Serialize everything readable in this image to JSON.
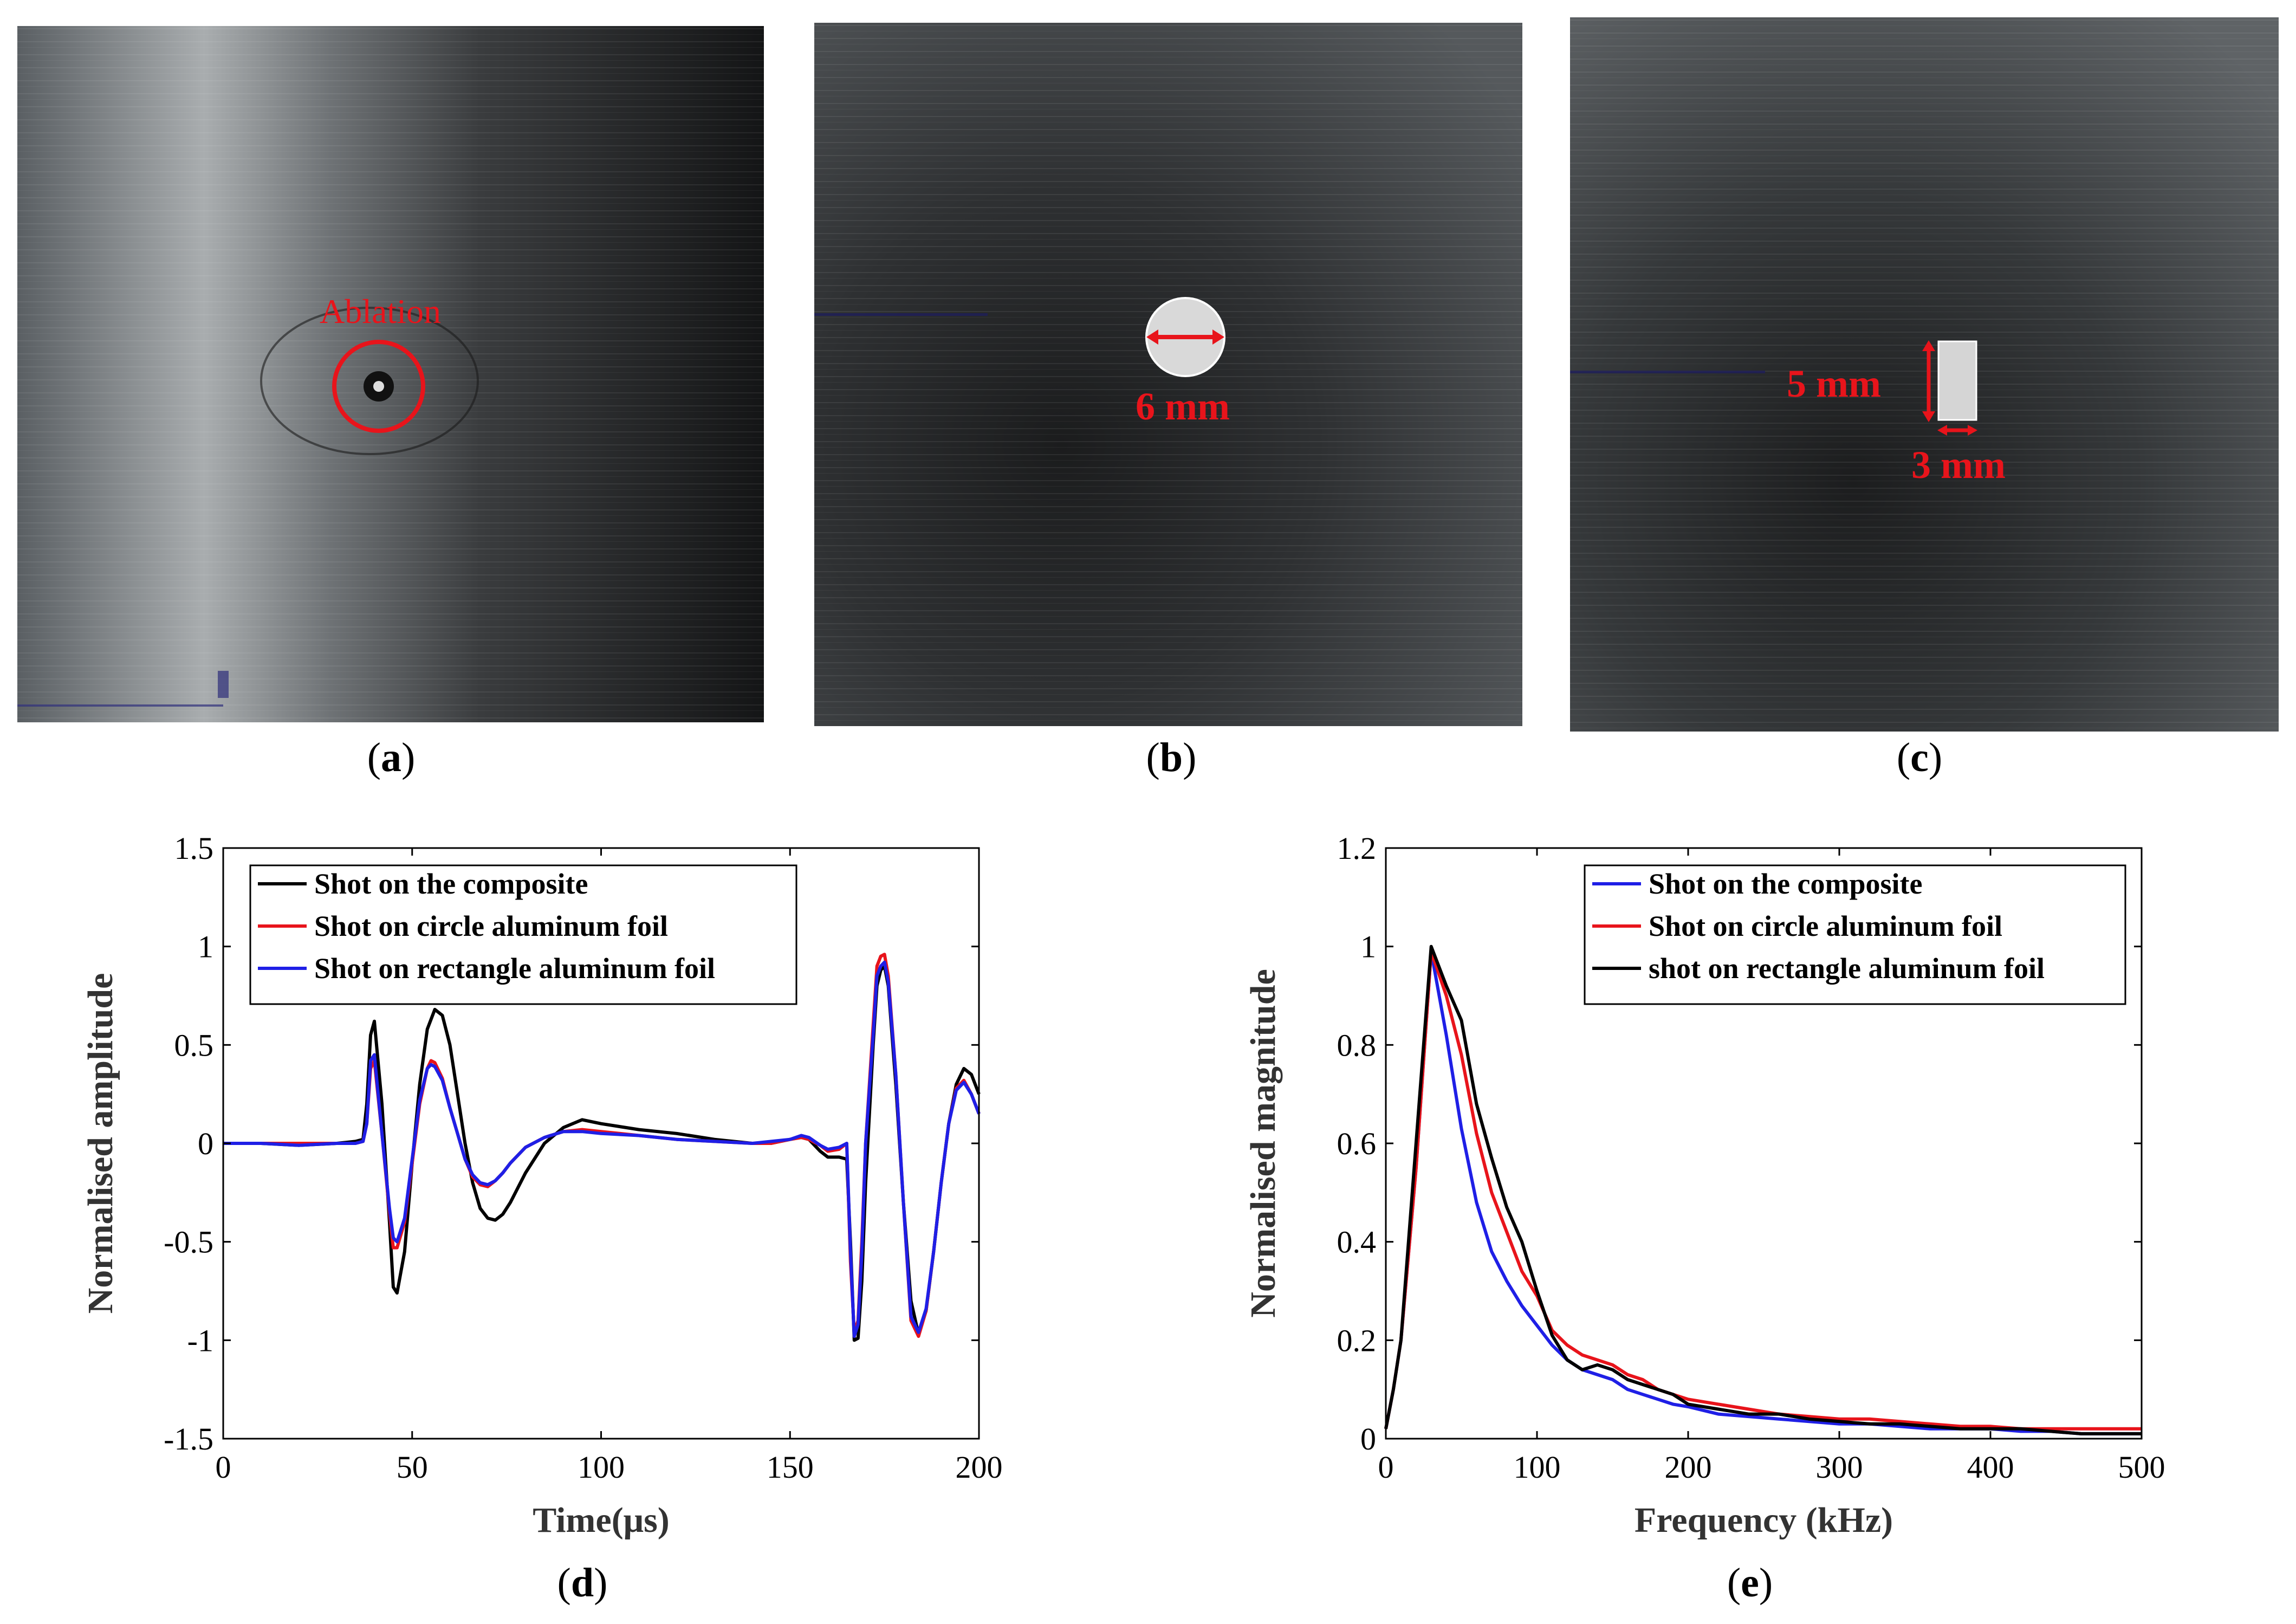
{
  "figure": {
    "photos": [
      {
        "caption_letter": "a",
        "annotation": "Ablation"
      },
      {
        "caption_letter": "b",
        "annotation": "6 mm"
      },
      {
        "caption_letter": "c",
        "annotation_height": "5 mm",
        "annotation_width": "3 mm"
      }
    ],
    "chart_captions": [
      "d",
      "e"
    ]
  },
  "colors": {
    "black": "#000000",
    "red": "#e8141b",
    "blue": "#1f1fe6",
    "annotation_red": "#e8141b"
  },
  "chart_data": [
    {
      "type": "line",
      "xlabel": "Time(μs)",
      "ylabel": "Normalised amplitude",
      "xlim": [
        0,
        200
      ],
      "ylim": [
        -1.5,
        1.5
      ],
      "xticks": [
        0,
        50,
        100,
        150,
        200
      ],
      "yticks": [
        -1.5,
        -1,
        -0.5,
        0,
        0.5,
        1,
        1.5
      ],
      "ytick_labels": [
        "-1.5",
        "-1",
        "-0.5",
        "0",
        "0.5",
        "1",
        "1.5"
      ],
      "legend_position": "top-left",
      "series": [
        {
          "name": "Shot on the composite",
          "color": "#000000",
          "x": [
            0,
            10,
            20,
            30,
            35,
            37,
            38,
            39,
            40,
            42,
            44,
            45,
            46,
            48,
            50,
            52,
            54,
            56,
            58,
            60,
            62,
            64,
            66,
            68,
            70,
            72,
            74,
            76,
            80,
            85,
            90,
            95,
            100,
            110,
            120,
            130,
            140,
            145,
            150,
            153,
            155,
            158,
            160,
            163,
            165,
            166,
            167,
            168,
            169,
            170,
            172,
            173,
            174,
            175,
            176,
            178,
            180,
            182,
            184,
            186,
            188,
            190,
            192,
            194,
            196,
            198,
            200
          ],
          "y": [
            0,
            0,
            -0.01,
            0,
            0.01,
            0.02,
            0.2,
            0.55,
            0.62,
            0.2,
            -0.4,
            -0.73,
            -0.76,
            -0.55,
            -0.1,
            0.3,
            0.58,
            0.68,
            0.65,
            0.5,
            0.25,
            0.0,
            -0.2,
            -0.33,
            -0.38,
            -0.39,
            -0.36,
            -0.3,
            -0.15,
            0.0,
            0.08,
            0.12,
            0.1,
            0.07,
            0.05,
            0.02,
            0.0,
            0.0,
            0.02,
            0.03,
            0.02,
            -0.04,
            -0.07,
            -0.07,
            -0.08,
            -0.5,
            -1.0,
            -0.99,
            -0.7,
            -0.2,
            0.5,
            0.8,
            0.88,
            0.9,
            0.8,
            0.3,
            -0.3,
            -0.8,
            -0.97,
            -0.85,
            -0.55,
            -0.2,
            0.1,
            0.3,
            0.38,
            0.35,
            0.25
          ]
        },
        {
          "name": "Shot on circle aluminum foil",
          "color": "#e8141b",
          "x": [
            0,
            10,
            20,
            30,
            35,
            37,
            38,
            39,
            40,
            42,
            44,
            45,
            46,
            48,
            50,
            52,
            54,
            55,
            56,
            58,
            60,
            62,
            64,
            66,
            68,
            70,
            72,
            74,
            76,
            80,
            85,
            90,
            95,
            100,
            110,
            120,
            130,
            140,
            145,
            150,
            153,
            155,
            158,
            160,
            163,
            165,
            166,
            167,
            168,
            169,
            170,
            172,
            173,
            174,
            175,
            176,
            178,
            180,
            182,
            184,
            186,
            188,
            190,
            192,
            194,
            196,
            198,
            200
          ],
          "y": [
            0,
            0,
            0,
            0,
            0,
            0.01,
            0.1,
            0.38,
            0.42,
            0.05,
            -0.35,
            -0.53,
            -0.53,
            -0.4,
            -0.1,
            0.2,
            0.38,
            0.42,
            0.41,
            0.33,
            0.18,
            0.05,
            -0.08,
            -0.17,
            -0.21,
            -0.22,
            -0.19,
            -0.15,
            -0.1,
            -0.02,
            0.03,
            0.06,
            0.07,
            0.06,
            0.04,
            0.02,
            0.01,
            0.0,
            0.0,
            0.02,
            0.03,
            0.02,
            -0.01,
            -0.04,
            -0.03,
            0.0,
            -0.6,
            -0.96,
            -0.9,
            -0.5,
            0.0,
            0.6,
            0.9,
            0.95,
            0.96,
            0.85,
            0.35,
            -0.3,
            -0.9,
            -0.98,
            -0.85,
            -0.55,
            -0.2,
            0.1,
            0.28,
            0.32,
            0.25,
            0.15
          ]
        },
        {
          "name": "Shot on rectangle aluminum foil",
          "color": "#1f1fe6",
          "x": [
            0,
            10,
            20,
            30,
            35,
            37,
            38,
            39,
            40,
            42,
            44,
            45,
            46,
            48,
            50,
            52,
            54,
            55,
            56,
            58,
            60,
            62,
            64,
            66,
            68,
            70,
            72,
            74,
            76,
            80,
            85,
            90,
            95,
            100,
            110,
            120,
            130,
            140,
            145,
            150,
            153,
            155,
            158,
            160,
            163,
            165,
            166,
            167,
            168,
            169,
            170,
            172,
            173,
            174,
            175,
            176,
            178,
            180,
            182,
            184,
            186,
            188,
            190,
            192,
            194,
            196,
            198,
            200
          ],
          "y": [
            0,
            0,
            -0.01,
            0,
            0,
            0.01,
            0.1,
            0.42,
            0.45,
            0.05,
            -0.33,
            -0.48,
            -0.5,
            -0.38,
            -0.08,
            0.22,
            0.38,
            0.4,
            0.39,
            0.32,
            0.18,
            0.05,
            -0.08,
            -0.16,
            -0.2,
            -0.21,
            -0.19,
            -0.15,
            -0.1,
            -0.02,
            0.03,
            0.06,
            0.06,
            0.05,
            0.04,
            0.02,
            0.01,
            0.0,
            0.01,
            0.02,
            0.04,
            0.03,
            -0.01,
            -0.03,
            -0.02,
            0.0,
            -0.55,
            -0.98,
            -0.92,
            -0.55,
            0.0,
            0.55,
            0.85,
            0.9,
            0.92,
            0.82,
            0.35,
            -0.3,
            -0.88,
            -0.96,
            -0.84,
            -0.55,
            -0.2,
            0.1,
            0.27,
            0.31,
            0.25,
            0.15
          ]
        }
      ]
    },
    {
      "type": "line",
      "xlabel": "Frequency (kHz)",
      "ylabel": "Normalised magnitude",
      "xlim": [
        0,
        500
      ],
      "ylim": [
        0,
        1.2
      ],
      "xticks": [
        0,
        100,
        200,
        300,
        400,
        500
      ],
      "yticks": [
        0,
        0.2,
        0.4,
        0.6,
        0.8,
        1,
        1.2
      ],
      "ytick_labels": [
        "0",
        "0.2",
        "0.4",
        "0.6",
        "0.8",
        "1",
        "1.2"
      ],
      "legend_position": "top-right",
      "series": [
        {
          "name": "Shot on the composite",
          "color": "#1f1fe6",
          "x": [
            0,
            5,
            10,
            20,
            30,
            40,
            50,
            60,
            70,
            80,
            90,
            100,
            110,
            120,
            130,
            140,
            150,
            160,
            170,
            180,
            190,
            200,
            220,
            240,
            260,
            280,
            300,
            320,
            340,
            360,
            380,
            400,
            420,
            440,
            460,
            480,
            500
          ],
          "y": [
            0.02,
            0.1,
            0.2,
            0.55,
            0.99,
            0.82,
            0.63,
            0.48,
            0.38,
            0.32,
            0.27,
            0.23,
            0.19,
            0.16,
            0.14,
            0.13,
            0.12,
            0.1,
            0.09,
            0.08,
            0.07,
            0.065,
            0.05,
            0.045,
            0.04,
            0.035,
            0.03,
            0.03,
            0.025,
            0.02,
            0.02,
            0.02,
            0.015,
            0.015,
            0.01,
            0.01,
            0.01
          ]
        },
        {
          "name": "Shot on circle aluminum foil",
          "color": "#e8141b",
          "x": [
            0,
            5,
            10,
            20,
            30,
            40,
            50,
            60,
            70,
            80,
            90,
            100,
            110,
            120,
            130,
            140,
            150,
            160,
            170,
            180,
            190,
            200,
            220,
            240,
            260,
            280,
            300,
            320,
            340,
            360,
            380,
            400,
            420,
            440,
            460,
            480,
            500
          ],
          "y": [
            0.02,
            0.1,
            0.2,
            0.55,
            0.99,
            0.9,
            0.78,
            0.62,
            0.5,
            0.42,
            0.34,
            0.29,
            0.22,
            0.19,
            0.17,
            0.16,
            0.15,
            0.13,
            0.12,
            0.1,
            0.09,
            0.08,
            0.07,
            0.06,
            0.05,
            0.045,
            0.04,
            0.04,
            0.035,
            0.03,
            0.025,
            0.025,
            0.02,
            0.02,
            0.02,
            0.02,
            0.02
          ]
        },
        {
          "name": "shot on rectangle aluminum foil",
          "color": "#000000",
          "x": [
            0,
            5,
            10,
            20,
            30,
            40,
            50,
            60,
            70,
            80,
            90,
            100,
            110,
            120,
            130,
            140,
            150,
            160,
            170,
            180,
            190,
            200,
            220,
            240,
            260,
            280,
            300,
            320,
            340,
            360,
            380,
            400,
            420,
            440,
            460,
            480,
            500
          ],
          "y": [
            0.02,
            0.1,
            0.2,
            0.6,
            1.0,
            0.92,
            0.85,
            0.68,
            0.57,
            0.47,
            0.4,
            0.3,
            0.21,
            0.16,
            0.14,
            0.15,
            0.14,
            0.12,
            0.11,
            0.1,
            0.09,
            0.07,
            0.06,
            0.05,
            0.05,
            0.04,
            0.035,
            0.03,
            0.03,
            0.025,
            0.02,
            0.02,
            0.02,
            0.015,
            0.01,
            0.01,
            0.01
          ]
        }
      ]
    }
  ]
}
